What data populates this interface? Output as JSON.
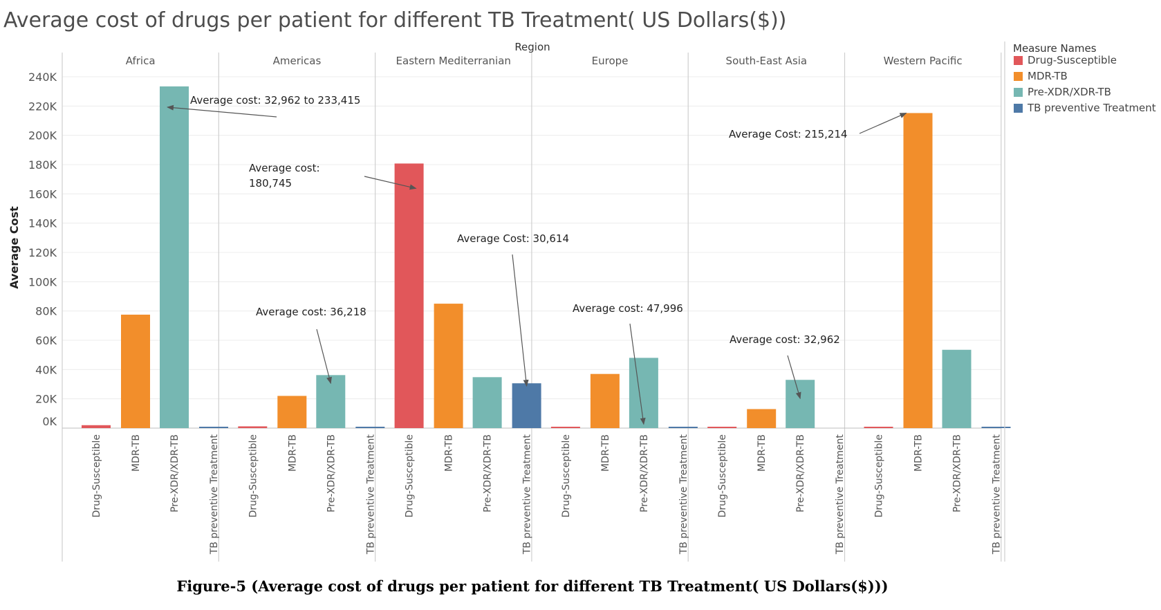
{
  "chart_data": {
    "type": "bar",
    "title": "Average cost of drugs per patient for different TB Treatment( US Dollars($))",
    "caption": "Figure-5 (Average cost of drugs per patient for different TB Treatment( US Dollars($)))",
    "column_header": "Region",
    "ylabel": "Average Cost",
    "ylim": [
      0,
      240000
    ],
    "yticks": [
      {
        "value": 0,
        "label": "0K"
      },
      {
        "value": 20000,
        "label": "20K"
      },
      {
        "value": 40000,
        "label": "40K"
      },
      {
        "value": 60000,
        "label": "60K"
      },
      {
        "value": 80000,
        "label": "80K"
      },
      {
        "value": 100000,
        "label": "100K"
      },
      {
        "value": 120000,
        "label": "120K"
      },
      {
        "value": 140000,
        "label": "140K"
      },
      {
        "value": 160000,
        "label": "160K"
      },
      {
        "value": 180000,
        "label": "180K"
      },
      {
        "value": 200000,
        "label": "200K"
      },
      {
        "value": 220000,
        "label": "220K"
      },
      {
        "value": 240000,
        "label": "240K"
      }
    ],
    "grid": "horizontal",
    "legend_title": "Measure Names",
    "legend_position": "right",
    "series": [
      {
        "name": "Drug-Susceptible",
        "color": "#e1575a"
      },
      {
        "name": "MDR-TB",
        "color": "#f28e2b"
      },
      {
        "name": "Pre-XDR/XDR-TB",
        "color": "#76b7b2"
      },
      {
        "name": "TB preventive Treatment",
        "color": "#4e79a7"
      }
    ],
    "regions": [
      {
        "name": "Africa",
        "values": [
          2000,
          77500,
          233415,
          700
        ]
      },
      {
        "name": "Americas",
        "values": [
          1200,
          22000,
          36218,
          700
        ]
      },
      {
        "name": "Eastern Mediterranian",
        "values": [
          180745,
          85000,
          34800,
          30614
        ]
      },
      {
        "name": "Europe",
        "values": [
          900,
          37000,
          47996,
          500
        ]
      },
      {
        "name": "South-East Asia",
        "values": [
          500,
          13000,
          32962,
          0
        ]
      },
      {
        "name": "Western Pacific",
        "values": [
          500,
          215214,
          53500,
          700
        ]
      }
    ],
    "annotations": [
      {
        "lines": [
          "Average cost: 32,962 to 233,415"
        ],
        "region": 0,
        "bar": 2,
        "value": 233415
      },
      {
        "lines": [
          "Average cost: 36,218"
        ],
        "region": 1,
        "bar": 2,
        "value": 36218
      },
      {
        "lines": [
          "Average cost:",
          "180,745"
        ],
        "region": 2,
        "bar": 0,
        "value": 180745
      },
      {
        "lines": [
          "Average Cost: 30,614"
        ],
        "region": 2,
        "bar": 3,
        "value": 30614
      },
      {
        "lines": [
          "Average cost: 47,996"
        ],
        "region": 3,
        "bar": 2,
        "value": 47996
      },
      {
        "lines": [
          "Average cost: 32,962"
        ],
        "region": 4,
        "bar": 2,
        "value": 32962
      },
      {
        "lines": [
          "Average Cost: 215,214"
        ],
        "region": 5,
        "bar": 1,
        "value": 215214
      }
    ]
  }
}
